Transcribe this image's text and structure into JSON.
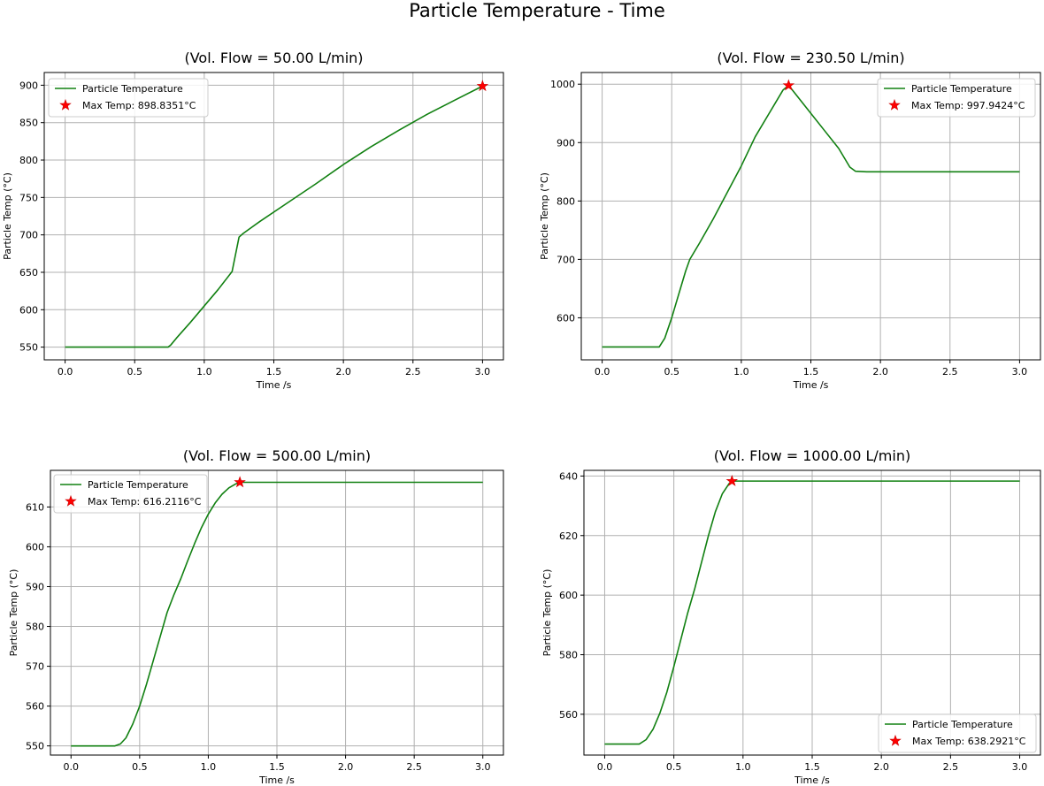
{
  "figure": {
    "title": "Particle Temperature - Time"
  },
  "colors": {
    "line": "#118011",
    "marker": "#ff0000",
    "marker_edge": "#cc0000",
    "grid": "#b0b0b0"
  },
  "chart_data": [
    {
      "type": "line",
      "title": "(Vol. Flow = 50.00 L/min)",
      "xlabel": "Time /s",
      "ylabel": "Particle Temp (°C)",
      "xlim": [
        -0.15,
        3.15
      ],
      "ylim": [
        533,
        917
      ],
      "xticks": [
        0,
        0.5,
        1,
        1.5,
        2,
        2.5,
        3
      ],
      "xtick_labels": [
        "0.0",
        "0.5",
        "1.0",
        "1.5",
        "2.0",
        "2.5",
        "3.0"
      ],
      "yticks": [
        550,
        600,
        650,
        700,
        750,
        800,
        850,
        900
      ],
      "ytick_labels": [
        "550",
        "600",
        "650",
        "700",
        "750",
        "800",
        "850",
        "900"
      ],
      "grid": true,
      "legend_position": "top-left",
      "series": [
        {
          "name": "Particle Temperature",
          "x": [
            0,
            0.5,
            0.74,
            0.76,
            0.8,
            0.9,
            1.0,
            1.1,
            1.2,
            1.25,
            1.28,
            1.4,
            1.6,
            1.8,
            2.0,
            2.2,
            2.4,
            2.6,
            2.8,
            3.0
          ],
          "y": [
            550,
            550,
            550,
            553,
            562,
            583,
            605,
            627,
            651,
            697,
            702,
            718,
            743,
            768,
            794,
            818,
            840,
            861,
            880,
            898.8
          ]
        }
      ],
      "markers": [
        {
          "name": "Max Temp: 898.8351°C",
          "x": 3.0,
          "y": 898.8351
        }
      ]
    },
    {
      "type": "line",
      "title": "(Vol. Flow = 230.50 L/min)",
      "xlabel": "Time /s",
      "ylabel": "Particle Temp (°C)",
      "xlim": [
        -0.15,
        3.15
      ],
      "ylim": [
        528,
        1020
      ],
      "xticks": [
        0,
        0.5,
        1,
        1.5,
        2,
        2.5,
        3
      ],
      "xtick_labels": [
        "0.0",
        "0.5",
        "1.0",
        "1.5",
        "2.0",
        "2.5",
        "3.0"
      ],
      "yticks": [
        600,
        700,
        800,
        900,
        1000
      ],
      "ytick_labels": [
        "600",
        "700",
        "800",
        "900",
        "1000"
      ],
      "grid": true,
      "legend_position": "top-right",
      "series": [
        {
          "name": "Particle Temperature",
          "x": [
            0,
            0.3,
            0.41,
            0.45,
            0.5,
            0.55,
            0.6,
            0.63,
            0.7,
            0.8,
            0.9,
            1.0,
            1.1,
            1.2,
            1.3,
            1.34,
            1.4,
            1.5,
            1.6,
            1.7,
            1.78,
            1.82,
            1.9,
            2.5,
            3.0
          ],
          "y": [
            550,
            550,
            550,
            565,
            600,
            640,
            680,
            700,
            728,
            770,
            815,
            860,
            910,
            950,
            990,
            998,
            980,
            950,
            920,
            890,
            858,
            851,
            850,
            850,
            850
          ]
        }
      ],
      "markers": [
        {
          "name": "Max Temp: 997.9424°C",
          "x": 1.34,
          "y": 997.9424
        }
      ]
    },
    {
      "type": "line",
      "title": "(Vol. Flow = 500.00 L/min)",
      "xlabel": "Time /s",
      "ylabel": "Particle Temp (°C)",
      "xlim": [
        -0.15,
        3.15
      ],
      "ylim": [
        547.7,
        619.2
      ],
      "xticks": [
        0,
        0.5,
        1,
        1.5,
        2,
        2.5,
        3
      ],
      "xtick_labels": [
        "0.0",
        "0.5",
        "1.0",
        "1.5",
        "2.0",
        "2.5",
        "3.0"
      ],
      "yticks": [
        550,
        560,
        570,
        580,
        590,
        600,
        610
      ],
      "ytick_labels": [
        "550",
        "560",
        "570",
        "580",
        "590",
        "600",
        "610"
      ],
      "grid": true,
      "legend_position": "top-left",
      "series": [
        {
          "name": "Particle Temperature",
          "x": [
            0,
            0.2,
            0.32,
            0.36,
            0.4,
            0.45,
            0.5,
            0.55,
            0.6,
            0.65,
            0.7,
            0.75,
            0.8,
            0.85,
            0.9,
            0.95,
            1.0,
            1.05,
            1.1,
            1.15,
            1.2,
            1.23,
            1.3,
            2.0,
            3.0
          ],
          "y": [
            550,
            550,
            550,
            550.5,
            552,
            555.5,
            560,
            565.5,
            571.5,
            577.5,
            583.5,
            588,
            592,
            596.5,
            600.8,
            604.8,
            608.2,
            611,
            613.2,
            614.8,
            615.8,
            616.2,
            616.2,
            616.2,
            616.2
          ]
        }
      ],
      "markers": [
        {
          "name": "Max Temp: 616.2116°C",
          "x": 1.23,
          "y": 616.2116
        }
      ]
    },
    {
      "type": "line",
      "title": "(Vol. Flow = 1000.00 L/min)",
      "xlabel": "Time /s",
      "ylabel": "Particle Temp (°C)",
      "xlim": [
        -0.15,
        3.15
      ],
      "ylim": [
        546.3,
        641.9
      ],
      "xticks": [
        0,
        0.5,
        1,
        1.5,
        2,
        2.5,
        3
      ],
      "xtick_labels": [
        "0.0",
        "0.5",
        "1.0",
        "1.5",
        "2.0",
        "2.5",
        "3.0"
      ],
      "yticks": [
        560,
        580,
        600,
        620,
        640
      ],
      "ytick_labels": [
        "560",
        "580",
        "600",
        "620",
        "640"
      ],
      "grid": true,
      "legend_position": "bottom-right",
      "series": [
        {
          "name": "Particle Temperature",
          "x": [
            0,
            0.15,
            0.25,
            0.3,
            0.35,
            0.4,
            0.45,
            0.5,
            0.55,
            0.6,
            0.65,
            0.7,
            0.75,
            0.8,
            0.85,
            0.9,
            0.92,
            1.0,
            2.0,
            3.0
          ],
          "y": [
            550,
            550,
            550,
            551.5,
            555,
            560.5,
            567.5,
            576,
            585,
            594,
            602,
            611,
            620,
            628,
            634,
            637.5,
            638.3,
            638.3,
            638.3,
            638.3
          ]
        }
      ],
      "markers": [
        {
          "name": "Max Temp: 638.2921°C",
          "x": 0.92,
          "y": 638.2921
        }
      ]
    }
  ]
}
